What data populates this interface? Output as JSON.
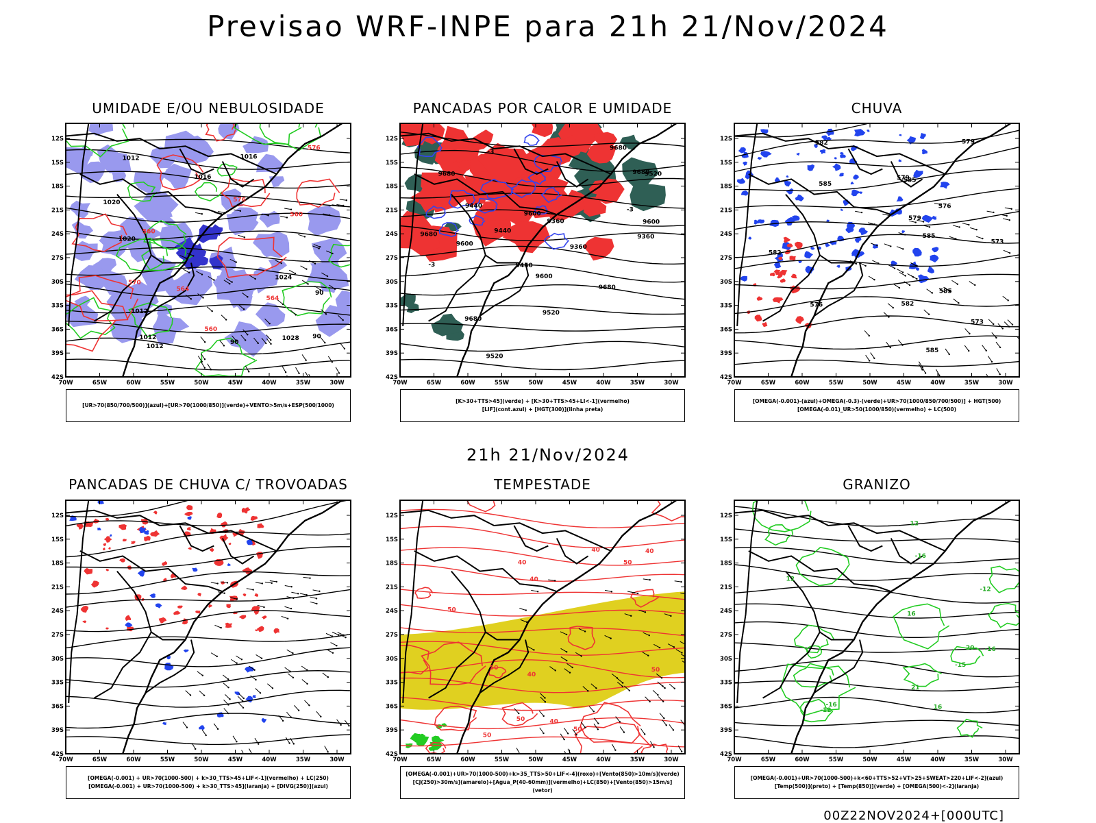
{
  "title": "Previsao WRF-INPE  para 21h 21/Nov/2024",
  "row_label": "21h 21/Nov/2024",
  "footer_stamp": "00Z22NOV2024+[000UTC]",
  "axes": {
    "lat_ticks": [
      "12S",
      "15S",
      "18S",
      "21S",
      "24S",
      "27S",
      "30S",
      "33S",
      "36S",
      "39S",
      "42S"
    ],
    "lon_ticks": [
      "70W",
      "65W",
      "60W",
      "55W",
      "50W",
      "45W",
      "40W",
      "35W",
      "30W"
    ]
  },
  "panels": [
    {
      "id": "umidade",
      "title": "UMIDADE E/OU NEBULOSIDADE",
      "legend": [
        "[UR>70(850/700/500)](azul)+[UR>70(1000/850)](verde)+VENTO>5m/s+ESP(500/1000)"
      ],
      "contour_labels": [
        "1012",
        "1012",
        "1012",
        "1012",
        "1016",
        "1016",
        "1020",
        "1024",
        "1028",
        "1020",
        "576",
        "576",
        "564",
        "564",
        "570",
        "560",
        "560",
        "560",
        "90",
        "90",
        "90"
      ],
      "colors": {
        "fill": "#9999ee",
        "dark": "#3333cc",
        "line1": "#22cc22",
        "line2": "#ee3333"
      }
    },
    {
      "id": "pancadas",
      "title": "PANCADAS POR CALOR E UMIDADE",
      "legend": [
        "[K>30+TTS>45](verde) + [K>30+TTS>45+LI<-1](vermelho)",
        "[LIF](cont.azul) + [HGT(300)](linha preta)"
      ],
      "contour_labels": [
        "9680",
        "9680",
        "9680",
        "9680",
        "9680",
        "9680",
        "9600",
        "9600",
        "9600",
        "9600",
        "9520",
        "9520",
        "9520",
        "9440",
        "9440",
        "9440",
        "9360",
        "9360",
        "9360",
        "-3",
        "-3",
        "-3"
      ],
      "colors": {
        "fill": "#ee3333",
        "dark": "#2f5f55",
        "line1": "#3344ee",
        "line2": "#000000"
      }
    },
    {
      "id": "chuva",
      "title": "CHUVA",
      "legend": [
        "[OMEGA(-0.001)-(azul)+OMEGA(-0.3)-(verde)+UR>70(1000/850/700/500)] + HGT(500)",
        "[OMEGA(-0.01)_UR>50(1000/850)(vermelho) + LC(500)"
      ],
      "contour_labels": [
        "585",
        "585",
        "585",
        "585",
        "582",
        "582",
        "582",
        "579",
        "579",
        "576",
        "576",
        "573",
        "573",
        "585",
        "579"
      ],
      "colors": {
        "fill": "#2244ee",
        "dark": "#ee3333",
        "line1": "#000000",
        "line2": "#000000"
      }
    },
    {
      "id": "trovoadas",
      "title": "PANCADAS DE CHUVA C/ TROVOADAS",
      "legend": [
        "[OMEGA(-0.001) + UR>70(1000-500) + k>30_TTS>45+LIF<-1](vermelho) + LC(250)",
        "[OMEGA(-0.001) + UR>70(1000-500) + k>30_TTS>45](laranja) + [DIVG(250)](azul)"
      ],
      "contour_labels": [],
      "colors": {
        "fill": "#ee3333",
        "dark": "#2244ee",
        "line1": "#000000",
        "line2": "#ff8800"
      }
    },
    {
      "id": "tempestade",
      "title": "TEMPESTADE",
      "legend": [
        "[OMEGA(-0.001)+UR>70(1000-500)+k>35_TTS>50+LIF<-4](roxo)+[Vento(850)>10m/s](verde)",
        "[CJ(250)>30m/s](amarelo)+[Agua_P(40-60mm)](vermelho)+LC(850)+[Vento(850)>15m/s](vetor)"
      ],
      "contour_labels": [
        "50",
        "50",
        "50",
        "50",
        "50",
        "40",
        "40",
        "40",
        "40",
        "40",
        "50",
        "50",
        "40"
      ],
      "colors": {
        "fill": "#e0d020",
        "dark": "#22cc22",
        "line1": "#ee3333",
        "line2": "#000000"
      }
    },
    {
      "id": "granizo",
      "title": "GRANIZO",
      "legend": [
        "[OMEGA(-0.001)+UR>70(1000-500)+k<60+TTS>52+VT>25+SWEAT>220+LIF<-2](azul)",
        "[Temp(500)](preto) + [Temp(850)](verde) + [OMEGA(500)<-2](laranja)"
      ],
      "contour_labels": [
        "-12",
        "-12",
        "-16",
        "-16",
        "-16",
        "-15",
        "12",
        "16",
        "20",
        "21",
        "16",
        "12"
      ],
      "colors": {
        "fill": "#22cc22",
        "dark": "#22cc22",
        "line1": "#000000",
        "line2": "#22cc22"
      }
    }
  ]
}
